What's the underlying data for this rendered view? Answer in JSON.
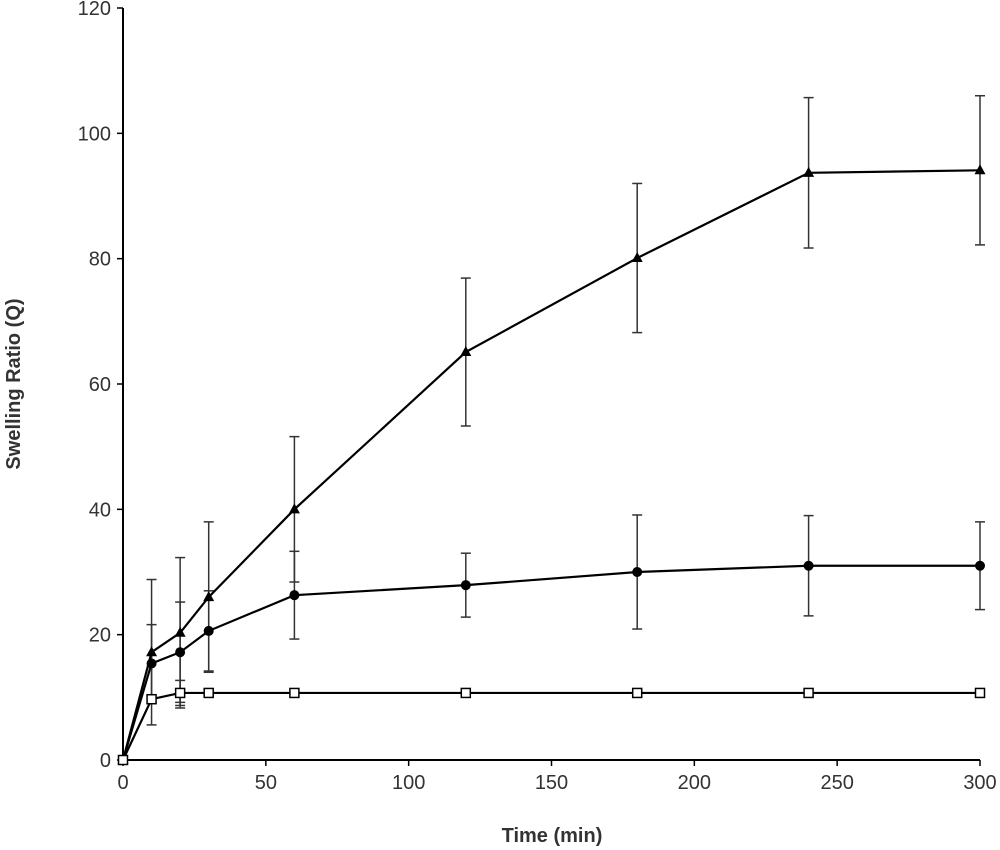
{
  "chart_data": {
    "type": "line",
    "title": "",
    "xlabel": "Time (min)",
    "ylabel": "Swelling Ratio (Q)",
    "xlim": [
      0,
      300
    ],
    "ylim": [
      0,
      120
    ],
    "xticks": [
      0,
      50,
      100,
      150,
      200,
      250,
      300
    ],
    "yticks": [
      0,
      20,
      40,
      60,
      80,
      100,
      120
    ],
    "grid": false,
    "series": [
      {
        "marker": "triangle",
        "color": "#000000",
        "x": [
          0,
          10,
          20,
          30,
          60,
          120,
          180,
          240,
          300
        ],
        "y": [
          0,
          17.2,
          20.3,
          26.0,
          40.0,
          65.1,
          80.1,
          93.7,
          94.1
        ],
        "error": [
          0,
          11.6,
          12.0,
          12.0,
          11.6,
          11.8,
          11.9,
          12.0,
          11.9
        ]
      },
      {
        "marker": "circle",
        "color": "#000000",
        "x": [
          0,
          10,
          20,
          30,
          60,
          120,
          180,
          240,
          300
        ],
        "y": [
          0,
          15.4,
          17.2,
          20.6,
          26.3,
          27.9,
          30.0,
          31.0,
          31.0
        ],
        "error": [
          0,
          6.2,
          8.0,
          6.4,
          7.0,
          5.1,
          9.1,
          8.0,
          7.0
        ]
      },
      {
        "marker": "open-square",
        "color": "#000000",
        "x": [
          0,
          10,
          20,
          30,
          60,
          120,
          180,
          240,
          300
        ],
        "y": [
          0,
          9.7,
          10.7,
          10.7,
          10.7,
          10.7,
          10.7,
          10.7,
          10.7
        ],
        "error": [
          0,
          0.3,
          2.0,
          0.3,
          0.2,
          0.2,
          0.2,
          0.2,
          0.2
        ]
      }
    ]
  }
}
